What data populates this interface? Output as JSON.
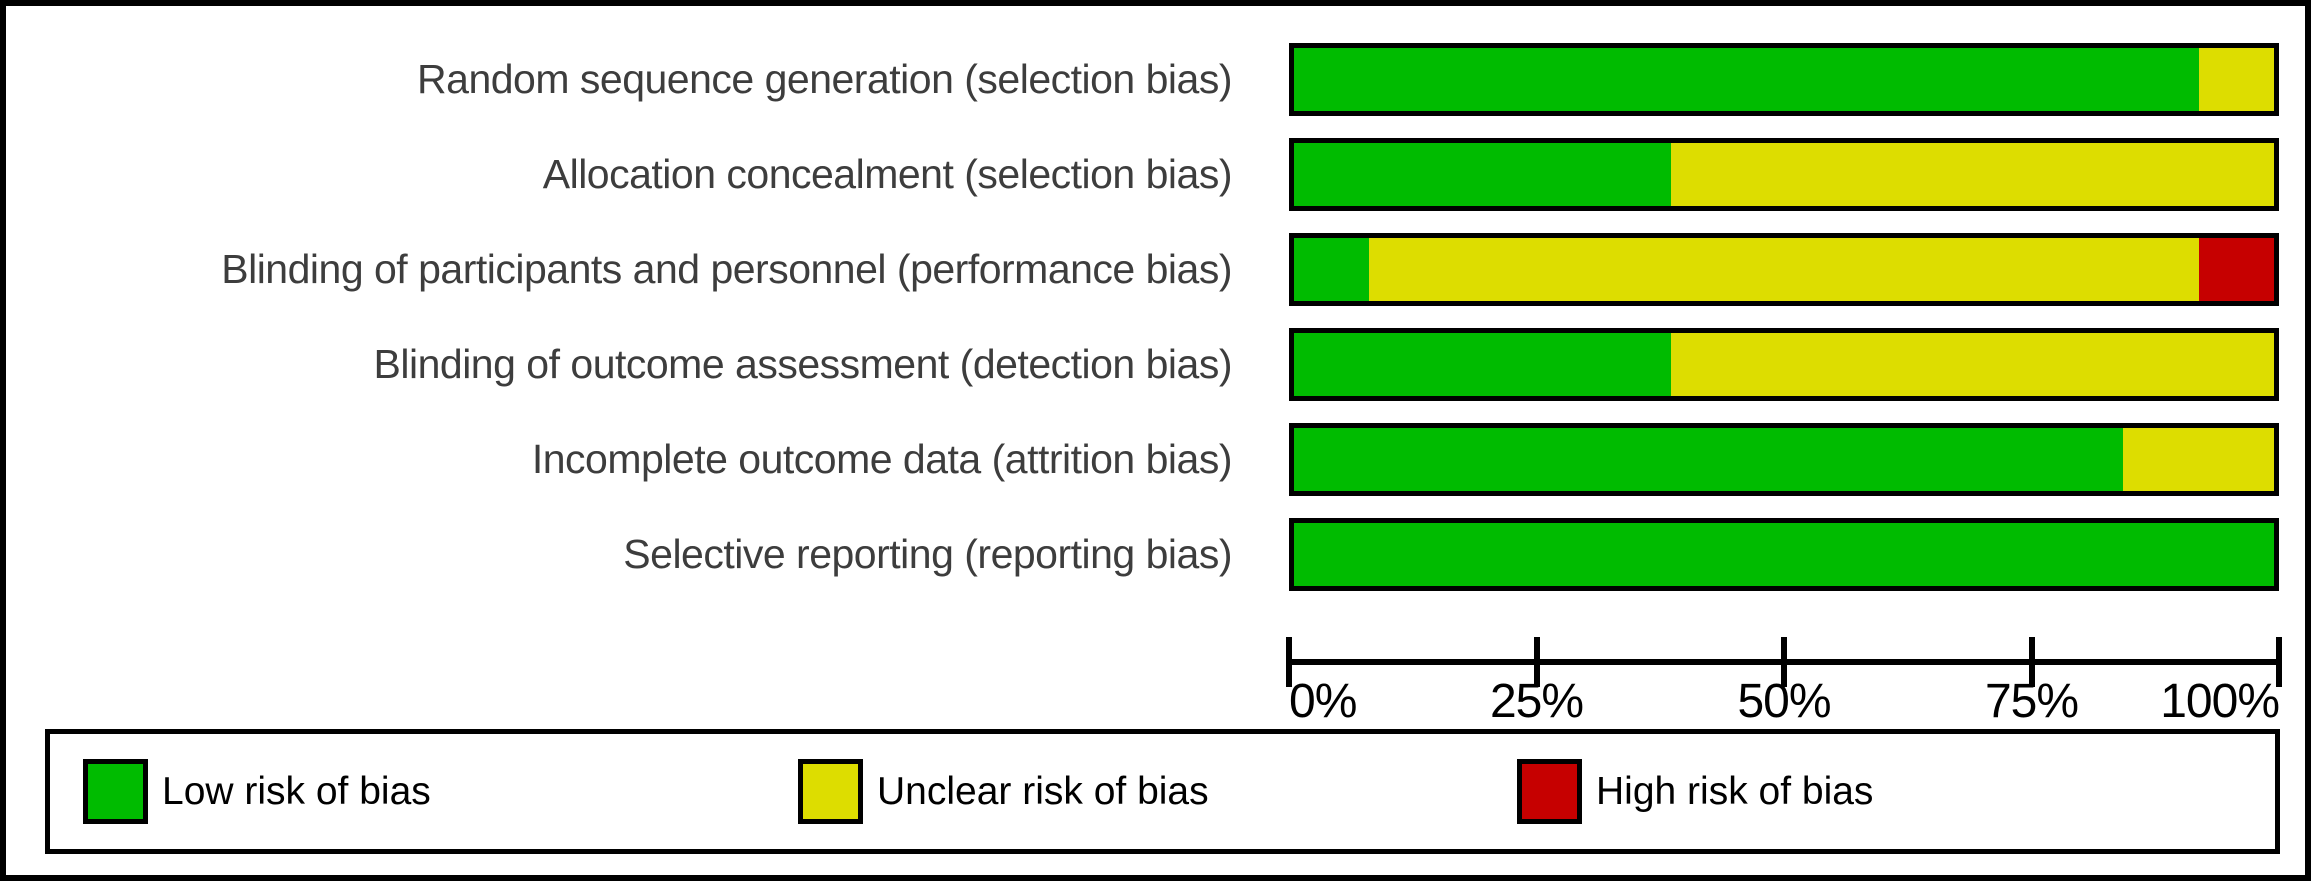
{
  "chart_data": {
    "type": "bar",
    "variant": "horizontal-stacked",
    "title": "",
    "xlabel": "",
    "ylabel": "",
    "x_axis": {
      "range": [
        0,
        100
      ],
      "tick_labels": [
        "0%",
        "25%",
        "50%",
        "75%",
        "100%"
      ],
      "tick_values": [
        0,
        25,
        50,
        75,
        100
      ],
      "grid": false
    },
    "categories": [
      "Random sequence generation (selection bias)",
      "Allocation concealment (selection bias)",
      "Blinding of participants and personnel (performance bias)",
      "Blinding of outcome assessment (detection bias)",
      "Incomplete outcome data (attrition bias)",
      "Selective reporting (reporting bias)"
    ],
    "series": [
      {
        "name": "Low risk of bias",
        "color": "#00BB00",
        "values": [
          92.3,
          38.5,
          7.7,
          38.5,
          84.6,
          100
        ]
      },
      {
        "name": "Unclear risk of bias",
        "color": "#DDDD00",
        "values": [
          7.7,
          61.5,
          84.6,
          61.5,
          15.4,
          0
        ]
      },
      {
        "name": "High risk of bias",
        "color": "#C60000",
        "values": [
          0,
          0,
          7.7,
          0,
          0,
          0
        ]
      }
    ],
    "legend": {
      "position": "bottom",
      "entries": [
        "Low risk of bias",
        "Unclear risk of bias",
        "High risk of bias"
      ]
    }
  },
  "colors": {
    "low_risk": "#00BB00",
    "unclear_risk": "#DDDD00",
    "high_risk": "#C60000",
    "border": "#000000",
    "label_text": "#3d3d3d",
    "axis_text": "#000000"
  }
}
